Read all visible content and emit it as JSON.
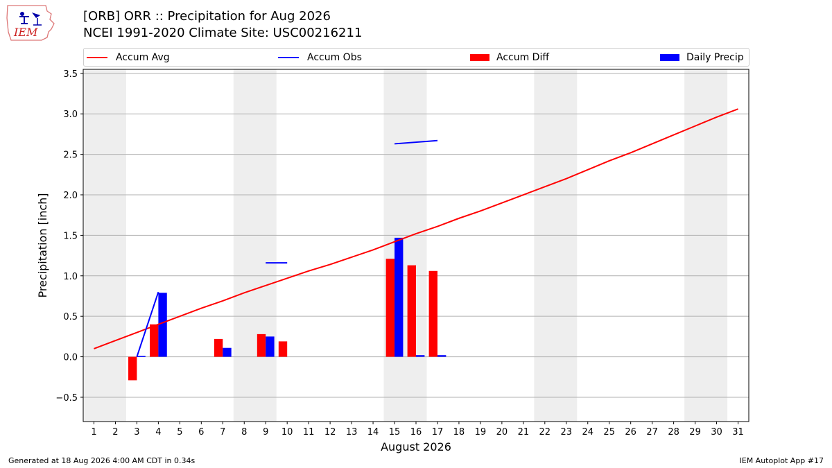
{
  "header": {
    "title_line1": "[ORB] ORR :: Precipitation for Aug 2026",
    "title_line2": "NCEI 1991-2020 Climate Site: USC00216211",
    "logo_text": "IEM"
  },
  "legend": {
    "accum_avg": "Accum Avg",
    "accum_obs": "Accum Obs",
    "accum_diff": "Accum Diff",
    "daily_precip": "Daily Precip"
  },
  "footer": {
    "left": "Generated at 18 Aug 2026 4:00 AM CDT in 0.34s",
    "right": "IEM Autoplot App #17"
  },
  "colors": {
    "avg": "#ff0000",
    "obs": "#0000ff",
    "diff": "#ff0000",
    "daily": "#0000ff",
    "weekend": "#eeeeee",
    "grid": "#b0b0b0"
  },
  "chart_data": {
    "type": "bar",
    "xlabel": "August 2026",
    "ylabel": "Precipitation [inch]",
    "xlim": [
      0.5,
      31.5
    ],
    "ylim": [
      -0.8,
      3.55
    ],
    "yticks": [
      -0.5,
      0.0,
      0.5,
      1.0,
      1.5,
      2.0,
      2.5,
      3.0,
      3.5
    ],
    "ytick_labels": [
      "−0.5",
      "0.0",
      "0.5",
      "1.0",
      "1.5",
      "2.0",
      "2.5",
      "3.0",
      "3.5"
    ],
    "xticks": [
      1,
      2,
      3,
      4,
      5,
      6,
      7,
      8,
      9,
      10,
      11,
      12,
      13,
      14,
      15,
      16,
      17,
      18,
      19,
      20,
      21,
      22,
      23,
      24,
      25,
      26,
      27,
      28,
      29,
      30,
      31
    ],
    "grid": "horizontal",
    "legend_position": "top",
    "weekend_days": [
      [
        1,
        2
      ],
      [
        8,
        9
      ],
      [
        15,
        16
      ],
      [
        22,
        23
      ],
      [
        29,
        30
      ]
    ],
    "accum_avg": {
      "days": [
        1,
        2,
        3,
        4,
        5,
        6,
        7,
        8,
        9,
        10,
        11,
        12,
        13,
        14,
        15,
        16,
        17,
        18,
        19,
        20,
        21,
        22,
        23,
        24,
        25,
        26,
        27,
        28,
        29,
        30,
        31
      ],
      "values": [
        0.1,
        0.2,
        0.3,
        0.4,
        0.5,
        0.6,
        0.69,
        0.79,
        0.88,
        0.97,
        1.06,
        1.14,
        1.23,
        1.32,
        1.42,
        1.52,
        1.61,
        1.71,
        1.8,
        1.9,
        2.0,
        2.1,
        2.2,
        2.31,
        2.42,
        2.52,
        2.63,
        2.74,
        2.85,
        2.96,
        3.06
      ]
    },
    "accum_obs_segments": [
      {
        "days": [
          3,
          4
        ],
        "values": [
          0.0,
          0.8
        ]
      },
      {
        "days": [
          9,
          10
        ],
        "values": [
          1.16,
          1.16
        ]
      },
      {
        "days": [
          15,
          17
        ],
        "values": [
          2.63,
          2.67
        ]
      }
    ],
    "accum_diff": {
      "days": [
        3,
        4,
        7,
        9,
        10,
        15,
        16,
        17
      ],
      "values": [
        -0.29,
        0.4,
        0.22,
        0.28,
        0.19,
        1.21,
        1.13,
        1.06
      ]
    },
    "daily_precip": {
      "days": [
        3,
        4,
        7,
        9,
        15,
        16,
        17
      ],
      "values": [
        0.01,
        0.79,
        0.11,
        0.25,
        1.47,
        0.02,
        0.02
      ]
    }
  }
}
